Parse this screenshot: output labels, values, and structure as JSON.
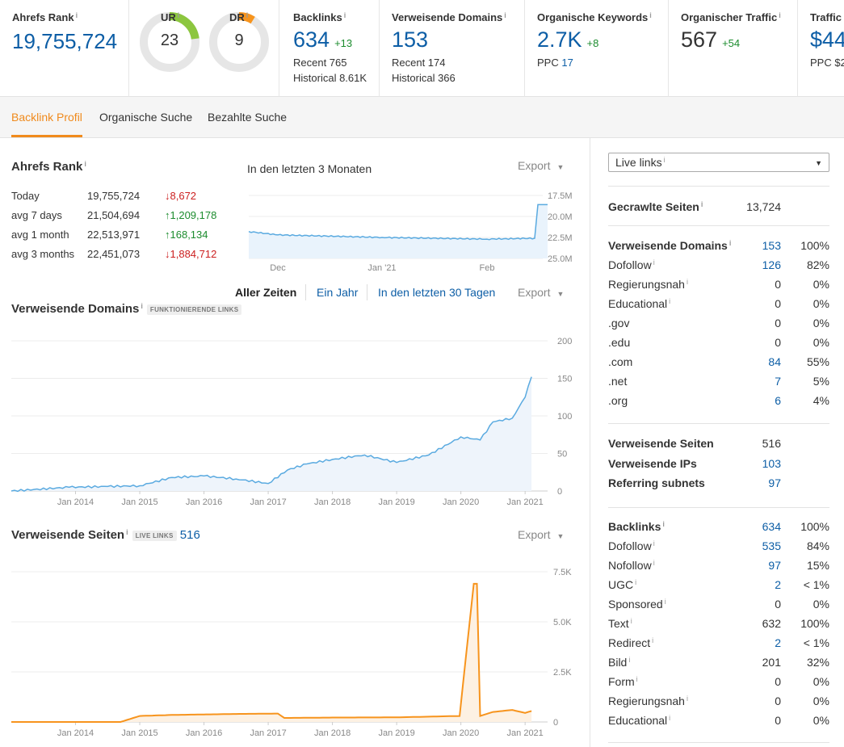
{
  "metrics": {
    "ahrefs_rank": {
      "label": "Ahrefs Rank",
      "value": "19,755,724"
    },
    "ur": {
      "label": "UR",
      "value": "23",
      "score": 23
    },
    "dr": {
      "label": "DR",
      "value": "9",
      "score": 9
    },
    "backlinks": {
      "label": "Backlinks",
      "value": "634",
      "delta": "+13",
      "recent": "Recent 765",
      "historical": "Historical 8.61K"
    },
    "ref_domains": {
      "label": "Verweisende Domains",
      "value": "153",
      "recent": "Recent 174",
      "historical": "Historical 366"
    },
    "org_keywords": {
      "label": "Organische Keywords",
      "value": "2.7K",
      "delta": "+8",
      "ppc_label": "PPC",
      "ppc_value": "17"
    },
    "org_traffic": {
      "label": "Organischer Traffic",
      "value": "567",
      "delta": "+54"
    },
    "traffic": {
      "label": "Traffic",
      "value": "$44",
      "ppc": "PPC $2"
    }
  },
  "colors": {
    "accent": "#f08a1c",
    "link": "#0d5ea6",
    "up": "#1c8c2e",
    "down": "#cc2020",
    "ur_ring": "#8cc63f",
    "dr_ring": "#f7941d",
    "chart_blue": "#5aaae0",
    "chart_orange": "#f7941d"
  },
  "tabs": [
    {
      "label": "Backlink Profil",
      "active": true
    },
    {
      "label": "Organische Suche",
      "active": false
    },
    {
      "label": "Bezahlte Suche",
      "active": false
    }
  ],
  "rank_section": {
    "title": "Ahrefs Rank",
    "period": "In den letzten 3 Monaten",
    "export": "Export",
    "rows": [
      {
        "label": "Today",
        "value": "19,755,724",
        "arrow": "↓",
        "change": "8,672",
        "dir": "down"
      },
      {
        "label": "avg 7 days",
        "value": "21,504,694",
        "arrow": "↑",
        "change": "1,209,178",
        "dir": "up"
      },
      {
        "label": "avg 1 month",
        "value": "22,513,971",
        "arrow": "↑",
        "change": "168,134",
        "dir": "up"
      },
      {
        "label": "avg 3 months",
        "value": "22,451,073",
        "arrow": "↓",
        "change": "1,884,712",
        "dir": "down"
      }
    ]
  },
  "range_controls": {
    "all_time": "Aller Zeiten",
    "one_year": "Ein Jahr",
    "last_30": "In den letzten 30 Tagen",
    "export": "Export"
  },
  "ref_domains_section": {
    "title": "Verweisende Domains",
    "badge": "FUNKTIONIERENDE LINKS"
  },
  "ref_pages_section": {
    "title": "Verweisende Seiten",
    "badge": "LIVE LINKS",
    "count": "516",
    "export": "Export"
  },
  "chart_data": [
    {
      "type": "line",
      "ylim": [
        25000000,
        17500000
      ],
      "yticks": [
        "17.5M",
        "20.0M",
        "22.5M",
        "25.0M"
      ],
      "xticks": [
        "Dec",
        "Jan '21",
        "Feb"
      ],
      "x": [
        "Nov",
        "Dec",
        "Jan '21",
        "Feb",
        "Feb end",
        "Mar"
      ],
      "series": [
        {
          "values": [
            21800000,
            22200000,
            22500000,
            22700000,
            22600000,
            18600000
          ]
        }
      ]
    },
    {
      "type": "area",
      "ylim": [
        0,
        200
      ],
      "yticks": [
        "200",
        "150",
        "100",
        "50",
        "0"
      ],
      "xticks": [
        "Jan 2014",
        "Jan 2015",
        "Jan 2016",
        "Jan 2017",
        "Jan 2018",
        "Jan 2019",
        "Jan 2020",
        "Jan 2021"
      ],
      "x": [
        2013.0,
        2013.9,
        2014.5,
        2015.0,
        2015.5,
        2016.0,
        2016.5,
        2017.0,
        2017.3,
        2017.6,
        2018.0,
        2018.5,
        2019.0,
        2019.5,
        2020.0,
        2020.3,
        2020.5,
        2020.8,
        2021.0,
        2021.1
      ],
      "series": [
        {
          "values": [
            0,
            5,
            6,
            7,
            18,
            20,
            16,
            10,
            28,
            36,
            42,
            48,
            38,
            48,
            72,
            68,
            92,
            97,
            125,
            152
          ]
        }
      ]
    },
    {
      "type": "area",
      "ylim": [
        0,
        7500
      ],
      "yticks": [
        "7.5K",
        "5.0K",
        "2.5K",
        "0"
      ],
      "xticks": [
        "Jan 2014",
        "Jan 2015",
        "Jan 2016",
        "Jan 2017",
        "Jan 2018",
        "Jan 2019",
        "Jan 2020",
        "Jan 2021"
      ],
      "x": [
        2013.0,
        2014.7,
        2015.0,
        2015.5,
        2016.5,
        2017.15,
        2017.25,
        2018.0,
        2019.0,
        2019.98,
        2020.2,
        2020.25,
        2020.3,
        2020.5,
        2020.8,
        2021.0,
        2021.1
      ],
      "series": [
        {
          "values": [
            0,
            0,
            300,
            350,
            400,
            420,
            200,
            220,
            230,
            300,
            6900,
            6900,
            300,
            500,
            600,
            450,
            550
          ]
        }
      ]
    }
  ],
  "right_panel": {
    "select": "Live links",
    "crawled": {
      "label": "Gecrawlte Seiten",
      "value": "13,724"
    },
    "domains": [
      {
        "label": "Verweisende Domains",
        "value": "153",
        "pct": "100%",
        "bold": true,
        "link": true,
        "info": true
      },
      {
        "label": "Dofollow",
        "value": "126",
        "pct": "82%",
        "link": true,
        "info": true
      },
      {
        "label": "Regierungsnah",
        "value": "0",
        "pct": "0%",
        "info": true
      },
      {
        "label": "Educational",
        "value": "0",
        "pct": "0%",
        "info": true
      },
      {
        "label": ".gov",
        "value": "0",
        "pct": "0%"
      },
      {
        "label": ".edu",
        "value": "0",
        "pct": "0%"
      },
      {
        "label": ".com",
        "value": "84",
        "pct": "55%",
        "link": true
      },
      {
        "label": ".net",
        "value": "7",
        "pct": "5%",
        "link": true
      },
      {
        "label": ".org",
        "value": "6",
        "pct": "4%",
        "link": true
      }
    ],
    "pages": [
      {
        "label": "Verweisende Seiten",
        "value": "516"
      },
      {
        "label": "Verweisende IPs",
        "value": "103",
        "link": true
      },
      {
        "label": "Referring subnets",
        "value": "97",
        "link": true
      }
    ],
    "backlinks": [
      {
        "label": "Backlinks",
        "value": "634",
        "pct": "100%",
        "bold": true,
        "link": true,
        "info": true
      },
      {
        "label": "Dofollow",
        "value": "535",
        "pct": "84%",
        "link": true,
        "info": true
      },
      {
        "label": "Nofollow",
        "value": "97",
        "pct": "15%",
        "link": true,
        "info": true
      },
      {
        "label": "UGC",
        "value": "2",
        "pct": "< 1%",
        "link": true,
        "info": true
      },
      {
        "label": "Sponsored",
        "value": "0",
        "pct": "0%",
        "info": true
      },
      {
        "label": "Text",
        "value": "632",
        "pct": "100%",
        "info": true
      },
      {
        "label": "Redirect",
        "value": "2",
        "pct": "< 1%",
        "link": true,
        "info": true
      },
      {
        "label": "Bild",
        "value": "201",
        "pct": "32%",
        "info": true
      },
      {
        "label": "Form",
        "value": "0",
        "pct": "0%",
        "info": true
      },
      {
        "label": "Regierungsnah",
        "value": "0",
        "pct": "0%",
        "info": true
      },
      {
        "label": "Educational",
        "value": "0",
        "pct": "0%",
        "info": true
      }
    ]
  }
}
